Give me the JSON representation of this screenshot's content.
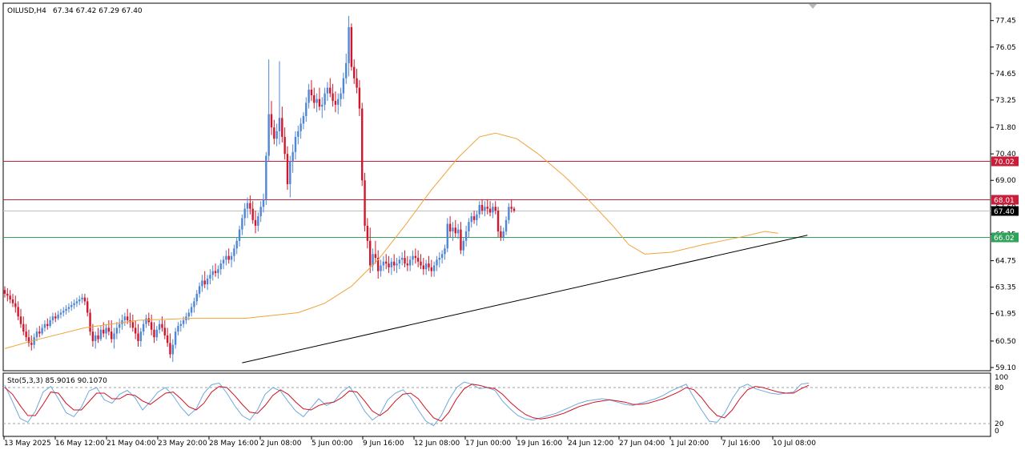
{
  "header": {
    "symbol": "OILUSD,H4",
    "ohlc": "67.34 67.42 67.29 67.40"
  },
  "oscillator": {
    "label": "Sto(5,3,3) 85.9016 90.1070",
    "ticks": [
      "100",
      "80",
      "20",
      "0"
    ]
  },
  "colors": {
    "bull": "#4f86d6",
    "bear": "#d1172c",
    "ma": "#f0a33a",
    "resistance": "#c81e3a",
    "support": "#2fa35a",
    "current": "#c0c0c0",
    "trendline": "#000000",
    "stoch_main": "#6fa8dc",
    "stoch_signal": "#d01020"
  },
  "chart_data": {
    "type": "candlestick",
    "symbol": "OILUSD",
    "timeframe": "H4",
    "ylim": [
      59.1,
      78.2
    ],
    "y_ticks": [
      "77.45",
      "76.05",
      "74.65",
      "73.25",
      "71.80",
      "70.40",
      "69.00",
      "67.60",
      "66.15",
      "64.75",
      "63.35",
      "61.95",
      "60.50",
      "59.10"
    ],
    "x_labels": [
      "13 May 2025",
      "16 May 12:00",
      "21 May 04:00",
      "23 May 20:00",
      "28 May 16:00",
      "2 Jun 08:00",
      "5 Jun 00:00",
      "9 Jun 16:00",
      "12 Jun 08:00",
      "17 Jun 00:00",
      "19 Jun 16:00",
      "24 Jun 12:00",
      "27 Jun 04:00",
      "1 Jul 20:00",
      "7 Jul 16:00",
      "10 Jul 08:00"
    ],
    "price_lines": [
      {
        "name": "resistance-upper",
        "value": 70.02,
        "label": "70.02"
      },
      {
        "name": "resistance-lower",
        "value": 68.01,
        "label": "68.01"
      },
      {
        "name": "current-price",
        "value": 67.4,
        "label": "67.40"
      },
      {
        "name": "support",
        "value": 66.02,
        "label": "66.02"
      }
    ],
    "trendline": {
      "from": {
        "bar": 89,
        "price": 59.35
      },
      "to": {
        "bar": 301,
        "price": 66.1
      }
    },
    "candles": [
      [
        63.2,
        63.4,
        62.8,
        63.0
      ],
      [
        63.0,
        63.3,
        62.6,
        62.9
      ],
      [
        62.9,
        63.2,
        62.5,
        62.7
      ],
      [
        62.7,
        63.0,
        62.3,
        62.5
      ],
      [
        62.5,
        62.9,
        62.0,
        62.3
      ],
      [
        62.3,
        62.6,
        61.6,
        61.8
      ],
      [
        61.8,
        62.2,
        61.2,
        61.4
      ],
      [
        61.4,
        61.8,
        60.8,
        61.0
      ],
      [
        61.0,
        61.4,
        60.5,
        60.7
      ],
      [
        60.7,
        61.1,
        60.2,
        60.4
      ],
      [
        60.4,
        60.8,
        60.0,
        60.3
      ],
      [
        60.3,
        60.9,
        60.1,
        60.7
      ],
      [
        60.7,
        61.2,
        60.5,
        61.0
      ],
      [
        61.0,
        61.3,
        60.7,
        60.9
      ],
      [
        60.9,
        61.4,
        60.8,
        61.2
      ],
      [
        61.2,
        61.6,
        61.0,
        61.4
      ],
      [
        61.4,
        61.7,
        61.1,
        61.3
      ],
      [
        61.3,
        61.8,
        61.2,
        61.6
      ],
      [
        61.6,
        62.0,
        61.4,
        61.8
      ],
      [
        61.8,
        62.0,
        61.5,
        61.7
      ],
      [
        61.7,
        62.1,
        61.6,
        61.9
      ],
      [
        61.9,
        62.2,
        61.7,
        62.0
      ],
      [
        62.0,
        62.3,
        61.8,
        62.1
      ],
      [
        62.1,
        62.4,
        61.9,
        62.2
      ],
      [
        62.2,
        62.5,
        62.0,
        62.3
      ],
      [
        62.3,
        62.6,
        62.1,
        62.4
      ],
      [
        62.4,
        62.7,
        62.2,
        62.5
      ],
      [
        62.5,
        62.8,
        62.3,
        62.6
      ],
      [
        62.6,
        62.9,
        62.4,
        62.7
      ],
      [
        62.7,
        63.0,
        62.5,
        62.8
      ],
      [
        62.8,
        63.0,
        62.4,
        62.6
      ],
      [
        62.6,
        62.8,
        61.8,
        62.0
      ],
      [
        62.0,
        62.2,
        60.8,
        61.0
      ],
      [
        61.0,
        61.4,
        60.2,
        60.5
      ],
      [
        60.5,
        61.0,
        60.1,
        60.8
      ],
      [
        60.8,
        61.2,
        60.4,
        60.6
      ],
      [
        60.6,
        61.3,
        60.5,
        61.1
      ],
      [
        61.1,
        61.5,
        60.7,
        60.9
      ],
      [
        60.9,
        61.4,
        60.6,
        61.2
      ],
      [
        61.2,
        61.6,
        60.8,
        61.0
      ],
      [
        61.0,
        61.6,
        60.4,
        60.6
      ],
      [
        60.6,
        61.2,
        60.1,
        60.9
      ],
      [
        60.9,
        61.5,
        60.6,
        61.2
      ],
      [
        61.2,
        61.7,
        60.9,
        61.4
      ],
      [
        61.4,
        61.9,
        61.1,
        61.6
      ],
      [
        61.6,
        62.0,
        61.3,
        61.8
      ],
      [
        61.8,
        62.2,
        61.4,
        61.6
      ],
      [
        61.6,
        62.0,
        61.2,
        61.5
      ],
      [
        61.5,
        61.9,
        61.0,
        61.2
      ],
      [
        61.2,
        61.6,
        60.6,
        60.9
      ],
      [
        60.9,
        61.4,
        60.2,
        60.5
      ],
      [
        60.5,
        61.2,
        60.2,
        61.0
      ],
      [
        61.0,
        61.6,
        60.8,
        61.4
      ],
      [
        61.4,
        61.9,
        61.2,
        61.7
      ],
      [
        61.7,
        62.0,
        61.3,
        61.5
      ],
      [
        61.5,
        61.9,
        60.8,
        61.1
      ],
      [
        61.1,
        61.5,
        60.4,
        60.7
      ],
      [
        60.7,
        61.3,
        60.5,
        61.1
      ],
      [
        61.1,
        61.6,
        60.9,
        61.4
      ],
      [
        61.4,
        61.8,
        61.0,
        61.2
      ],
      [
        61.2,
        61.6,
        60.6,
        60.8
      ],
      [
        60.8,
        61.2,
        60.2,
        60.4
      ],
      [
        60.4,
        60.9,
        59.6,
        59.8
      ],
      [
        59.8,
        60.6,
        59.4,
        60.3
      ],
      [
        60.3,
        61.2,
        60.1,
        61.0
      ],
      [
        61.0,
        61.5,
        60.8,
        61.3
      ],
      [
        61.3,
        61.6,
        61.0,
        61.4
      ],
      [
        61.4,
        61.8,
        61.2,
        61.6
      ],
      [
        61.6,
        62.0,
        61.4,
        61.8
      ],
      [
        61.8,
        62.2,
        61.6,
        62.0
      ],
      [
        62.0,
        62.5,
        61.8,
        62.3
      ],
      [
        62.3,
        62.8,
        62.0,
        62.6
      ],
      [
        62.6,
        63.2,
        62.4,
        63.0
      ],
      [
        63.0,
        63.6,
        62.8,
        63.4
      ],
      [
        63.4,
        64.0,
        63.1,
        63.7
      ],
      [
        63.7,
        64.2,
        63.3,
        63.5
      ],
      [
        63.5,
        64.0,
        63.2,
        63.8
      ],
      [
        63.8,
        64.3,
        63.5,
        64.0
      ],
      [
        64.0,
        64.5,
        63.7,
        64.2
      ],
      [
        64.2,
        64.6,
        63.9,
        64.1
      ],
      [
        64.1,
        64.5,
        63.8,
        64.3
      ],
      [
        64.3,
        64.8,
        64.0,
        64.6
      ],
      [
        64.6,
        65.0,
        64.3,
        64.8
      ],
      [
        64.8,
        65.3,
        64.5,
        65.0
      ],
      [
        65.0,
        65.4,
        64.6,
        64.8
      ],
      [
        64.8,
        65.2,
        64.4,
        65.0
      ],
      [
        65.0,
        65.6,
        64.7,
        65.4
      ],
      [
        65.4,
        66.0,
        65.1,
        65.8
      ],
      [
        65.8,
        66.6,
        65.5,
        66.4
      ],
      [
        66.4,
        67.2,
        66.1,
        67.0
      ],
      [
        67.0,
        67.8,
        66.6,
        67.5
      ],
      [
        67.5,
        68.1,
        67.0,
        67.8
      ],
      [
        67.8,
        68.2,
        67.2,
        67.5
      ],
      [
        67.5,
        67.9,
        66.7,
        66.9
      ],
      [
        66.9,
        67.4,
        66.2,
        66.6
      ],
      [
        66.6,
        67.3,
        66.3,
        67.1
      ],
      [
        67.1,
        67.9,
        66.8,
        67.6
      ],
      [
        67.6,
        68.3,
        67.3,
        68.0
      ],
      [
        68.0,
        70.5,
        67.7,
        70.3
      ],
      [
        70.3,
        75.4,
        70.0,
        72.5
      ],
      [
        72.5,
        73.2,
        71.4,
        71.8
      ],
      [
        71.8,
        72.2,
        70.9,
        71.2
      ],
      [
        71.2,
        72.0,
        70.8,
        71.6
      ],
      [
        71.6,
        75.3,
        70.9,
        72.3
      ],
      [
        72.3,
        72.9,
        71.0,
        71.3
      ],
      [
        71.3,
        71.8,
        70.1,
        70.4
      ],
      [
        70.4,
        70.8,
        68.5,
        68.8
      ],
      [
        68.8,
        70.3,
        68.1,
        70.0
      ],
      [
        70.0,
        70.9,
        69.4,
        70.5
      ],
      [
        70.5,
        71.6,
        70.1,
        71.3
      ],
      [
        71.3,
        71.9,
        70.9,
        71.6
      ],
      [
        71.6,
        72.3,
        71.2,
        72.0
      ],
      [
        72.0,
        72.6,
        71.7,
        72.4
      ],
      [
        72.4,
        73.4,
        72.1,
        73.1
      ],
      [
        73.1,
        74.1,
        72.8,
        73.8
      ],
      [
        73.8,
        74.3,
        73.2,
        73.5
      ],
      [
        73.5,
        73.9,
        72.8,
        73.1
      ],
      [
        73.1,
        73.6,
        72.6,
        73.3
      ],
      [
        73.3,
        73.9,
        72.7,
        72.9
      ],
      [
        72.9,
        73.4,
        72.3,
        73.0
      ],
      [
        73.0,
        73.9,
        72.7,
        73.6
      ],
      [
        73.6,
        74.2,
        73.2,
        73.9
      ],
      [
        73.9,
        74.4,
        73.4,
        73.6
      ],
      [
        73.6,
        74.1,
        72.9,
        73.2
      ],
      [
        73.2,
        73.7,
        72.6,
        73.0
      ],
      [
        73.0,
        73.6,
        72.5,
        73.3
      ],
      [
        73.3,
        73.9,
        72.9,
        73.6
      ],
      [
        73.6,
        74.7,
        73.3,
        74.4
      ],
      [
        74.4,
        75.7,
        74.1,
        75.2
      ],
      [
        75.2,
        77.7,
        74.5,
        77.1
      ],
      [
        77.1,
        77.3,
        74.8,
        75.0
      ],
      [
        75.0,
        75.4,
        74.1,
        74.4
      ],
      [
        74.4,
        74.9,
        73.6,
        73.9
      ],
      [
        73.9,
        74.3,
        72.4,
        72.8
      ],
      [
        72.8,
        73.1,
        68.7,
        69.0
      ],
      [
        69.0,
        69.4,
        66.3,
        66.6
      ],
      [
        66.6,
        67.0,
        65.4,
        65.8
      ],
      [
        65.8,
        66.5,
        64.1,
        64.5
      ],
      [
        64.5,
        65.4,
        64.2,
        65.1
      ],
      [
        65.1,
        65.8,
        64.6,
        64.9
      ],
      [
        64.9,
        65.3,
        63.8,
        64.2
      ],
      [
        64.2,
        64.8,
        63.9,
        64.5
      ],
      [
        64.5,
        65.0,
        64.2,
        64.7
      ],
      [
        64.7,
        65.1,
        64.3,
        64.6
      ],
      [
        64.6,
        65.0,
        64.1,
        64.4
      ],
      [
        64.4,
        64.9,
        64.0,
        64.7
      ],
      [
        64.7,
        65.1,
        64.2,
        64.5
      ],
      [
        64.5,
        64.9,
        64.1,
        64.6
      ],
      [
        64.6,
        65.0,
        64.3,
        64.8
      ],
      [
        64.8,
        65.2,
        64.5,
        64.9
      ],
      [
        64.9,
        65.3,
        64.4,
        64.6
      ],
      [
        64.6,
        65.0,
        64.2,
        64.5
      ],
      [
        64.5,
        65.0,
        64.2,
        64.8
      ],
      [
        64.8,
        65.3,
        64.5,
        65.0
      ],
      [
        65.0,
        65.4,
        64.6,
        64.9
      ],
      [
        64.9,
        65.3,
        64.4,
        64.7
      ],
      [
        64.7,
        65.1,
        64.3,
        64.5
      ],
      [
        64.5,
        64.9,
        64.0,
        64.3
      ],
      [
        64.3,
        64.8,
        64.0,
        64.6
      ],
      [
        64.6,
        65.0,
        64.2,
        64.4
      ],
      [
        64.4,
        64.8,
        63.9,
        64.2
      ],
      [
        64.2,
        64.7,
        63.9,
        64.5
      ],
      [
        64.5,
        65.0,
        64.2,
        64.8
      ],
      [
        64.8,
        65.2,
        64.4,
        64.9
      ],
      [
        64.9,
        65.3,
        64.6,
        65.1
      ],
      [
        65.1,
        65.6,
        64.8,
        65.4
      ],
      [
        65.4,
        67.0,
        65.2,
        66.7
      ],
      [
        66.7,
        67.1,
        66.0,
        66.3
      ],
      [
        66.3,
        66.8,
        65.8,
        66.5
      ],
      [
        66.5,
        66.9,
        66.0,
        66.2
      ],
      [
        66.2,
        66.7,
        65.9,
        66.4
      ],
      [
        66.4,
        66.8,
        65.1,
        65.3
      ],
      [
        65.3,
        66.0,
        65.0,
        65.8
      ],
      [
        65.8,
        66.6,
        65.5,
        66.3
      ],
      [
        66.3,
        67.0,
        66.0,
        66.8
      ],
      [
        66.8,
        67.3,
        66.5,
        67.1
      ],
      [
        67.1,
        67.4,
        66.7,
        66.9
      ],
      [
        66.9,
        67.4,
        66.6,
        67.2
      ],
      [
        67.2,
        67.9,
        67.0,
        67.7
      ],
      [
        67.7,
        68.0,
        67.2,
        67.4
      ],
      [
        67.4,
        67.9,
        67.1,
        67.6
      ],
      [
        67.6,
        68.0,
        67.2,
        67.5
      ],
      [
        67.5,
        67.9,
        67.1,
        67.3
      ],
      [
        67.3,
        67.8,
        67.0,
        67.6
      ],
      [
        67.6,
        67.9,
        67.2,
        67.4
      ],
      [
        67.4,
        67.6,
        66.0,
        66.3
      ],
      [
        66.3,
        66.6,
        65.8,
        66.0
      ],
      [
        66.0,
        66.5,
        65.8,
        66.3
      ],
      [
        66.3,
        67.1,
        66.1,
        66.9
      ],
      [
        66.9,
        67.8,
        66.7,
        67.6
      ],
      [
        67.6,
        68.0,
        67.3,
        67.5
      ],
      [
        67.5,
        67.6,
        67.3,
        67.4
      ]
    ],
    "moving_average": [
      [
        0,
        60.1
      ],
      [
        10,
        60.5
      ],
      [
        30,
        61.2
      ],
      [
        50,
        61.6
      ],
      [
        70,
        61.7
      ],
      [
        90,
        61.7
      ],
      [
        110,
        62.0
      ],
      [
        120,
        62.5
      ],
      [
        130,
        63.4
      ],
      [
        140,
        64.8
      ],
      [
        150,
        66.6
      ],
      [
        160,
        68.5
      ],
      [
        170,
        70.2
      ],
      [
        178,
        71.3
      ],
      [
        184,
        71.5
      ],
      [
        192,
        71.2
      ],
      [
        200,
        70.4
      ],
      [
        210,
        69.2
      ],
      [
        220,
        67.8
      ],
      [
        228,
        66.6
      ],
      [
        234,
        65.6
      ],
      [
        240,
        65.1
      ],
      [
        250,
        65.2
      ],
      [
        262,
        65.6
      ],
      [
        276,
        66.0
      ],
      [
        285,
        66.3
      ],
      [
        290,
        66.2
      ]
    ],
    "stochastic": {
      "main": [
        84,
        55,
        25,
        18,
        38,
        72,
        82,
        60,
        35,
        28,
        45,
        74,
        80,
        58,
        52,
        68,
        75,
        62,
        40,
        55,
        72,
        80,
        65,
        45,
        30,
        42,
        70,
        85,
        88,
        70,
        48,
        30,
        22,
        40,
        68,
        80,
        74,
        55,
        38,
        28,
        44,
        60,
        48,
        55,
        72,
        82,
        62,
        38,
        22,
        32,
        58,
        70,
        76,
        62,
        40,
        20,
        12,
        30,
        58,
        80,
        90,
        86,
        78,
        80,
        75,
        56,
        42,
        30,
        24,
        22,
        26,
        30,
        34,
        40,
        46,
        52,
        56,
        58,
        60,
        58,
        54,
        50,
        48,
        52,
        56,
        60,
        66,
        74,
        80,
        86,
        62,
        40,
        20,
        18,
        34,
        60,
        80,
        86,
        78,
        74,
        70,
        68,
        70,
        72,
        86,
        88
      ],
      "signal": [
        80,
        68,
        48,
        30,
        30,
        50,
        72,
        70,
        52,
        40,
        40,
        55,
        70,
        70,
        60,
        60,
        68,
        66,
        56,
        50,
        60,
        70,
        72,
        60,
        46,
        40,
        52,
        72,
        82,
        80,
        66,
        50,
        36,
        34,
        48,
        66,
        76,
        68,
        54,
        42,
        40,
        48,
        52,
        54,
        62,
        74,
        72,
        56,
        38,
        30,
        40,
        56,
        68,
        70,
        60,
        42,
        26,
        20,
        36,
        60,
        78,
        86,
        84,
        80,
        78,
        68,
        54,
        42,
        32,
        26,
        24,
        26,
        30,
        34,
        40,
        46,
        50,
        54,
        56,
        58,
        56,
        54,
        50,
        50,
        52,
        56,
        60,
        66,
        72,
        80,
        76,
        62,
        44,
        30,
        26,
        40,
        60,
        76,
        82,
        80,
        76,
        72,
        70,
        70,
        78,
        84
      ]
    }
  }
}
